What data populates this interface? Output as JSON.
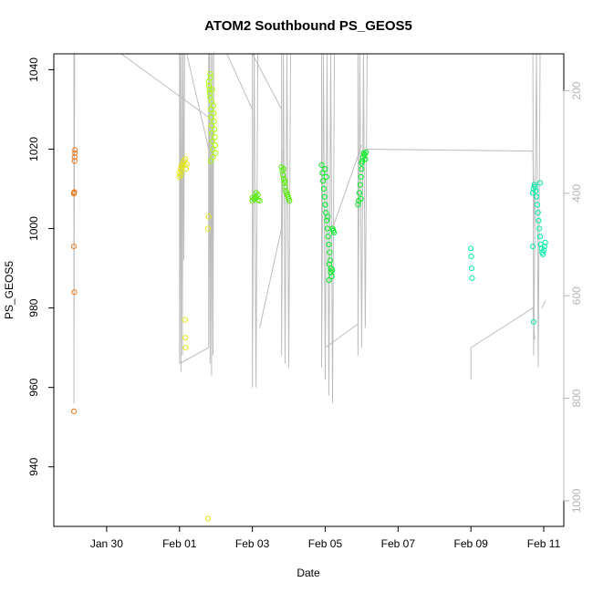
{
  "chart_data": {
    "type": "scatter",
    "title": "ATOM2 Southbound PS_GEOS5",
    "xlabel": "Date",
    "ylabel": "PS_GEOS5",
    "x_unit": "days",
    "x_ticks": [
      {
        "value": 0,
        "label": "Jan 30"
      },
      {
        "value": 2,
        "label": "Feb 01"
      },
      {
        "value": 4,
        "label": "Feb 03"
      },
      {
        "value": 6,
        "label": "Feb 05"
      },
      {
        "value": 8,
        "label": "Feb 07"
      },
      {
        "value": 10,
        "label": "Feb 09"
      },
      {
        "value": 12,
        "label": "Feb 11"
      }
    ],
    "xlim": [
      -1.45,
      12.55
    ],
    "ylim": [
      925,
      1044
    ],
    "y_ticks": [
      940,
      960,
      980,
      1000,
      1020,
      1040
    ],
    "y2_ticks": [
      200,
      400,
      600,
      800,
      1000
    ],
    "y2lim": [
      1050,
      128
    ],
    "colors": {
      "orange": "#ee7d1e",
      "yellow": "#e6e619",
      "lime": "#aaff00",
      "green": "#55ee00",
      "bright_green": "#00ee22",
      "aqua": "#00eeaa",
      "track": "#bdbdbd",
      "axis": "#000000",
      "right_axis": "#b4b4b4"
    },
    "series": [
      {
        "color": "orange",
        "x": 0.0,
        "points": [
          [
            -0.9,
            1009
          ],
          [
            -0.9,
            1008.8
          ],
          [
            -0.89,
            1009.2
          ],
          [
            -0.9,
            995.5
          ],
          [
            -0.89,
            984
          ],
          [
            -0.88,
            1017
          ],
          [
            -0.88,
            1018
          ],
          [
            -0.87,
            1019
          ],
          [
            -0.87,
            1019.8
          ],
          [
            -0.9,
            954
          ]
        ]
      },
      {
        "color": "yellow",
        "points": [
          [
            2.0,
            1013
          ],
          [
            2.0,
            1014
          ],
          [
            2.02,
            1015
          ],
          [
            2.03,
            1013.5
          ],
          [
            2.05,
            1016
          ],
          [
            2.06,
            1014.5
          ],
          [
            2.08,
            1015.5
          ],
          [
            2.1,
            1016.5
          ],
          [
            2.12,
            1017
          ],
          [
            2.14,
            1016
          ],
          [
            2.16,
            1017.5
          ],
          [
            2.18,
            1015
          ],
          [
            2.2,
            1016.2
          ],
          [
            2.15,
            977
          ],
          [
            2.16,
            972.5
          ],
          [
            2.17,
            970
          ],
          [
            2.78,
            927
          ],
          [
            2.8,
            1003
          ],
          [
            2.78,
            1000
          ]
        ]
      },
      {
        "color": "lime",
        "points": [
          [
            2.8,
            1037
          ],
          [
            2.81,
            1036
          ],
          [
            2.82,
            1035
          ],
          [
            2.83,
            1034
          ],
          [
            2.84,
            1033
          ],
          [
            2.85,
            1038
          ],
          [
            2.86,
            1030
          ],
          [
            2.87,
            1028
          ],
          [
            2.88,
            1026
          ],
          [
            2.89,
            1024
          ],
          [
            2.9,
            1022
          ],
          [
            2.91,
            1020
          ],
          [
            2.92,
            1018
          ],
          [
            2.93,
            1031
          ],
          [
            2.94,
            1029
          ],
          [
            2.95,
            1027
          ],
          [
            2.96,
            1025
          ],
          [
            2.97,
            1023
          ],
          [
            2.98,
            1021
          ],
          [
            2.99,
            1019
          ],
          [
            2.9,
            1035
          ],
          [
            2.88,
            1032
          ],
          [
            2.86,
            1017
          ],
          [
            2.84,
            1039
          ]
        ]
      },
      {
        "color": "green",
        "points": [
          [
            4.0,
            1007
          ],
          [
            4.05,
            1007.5
          ],
          [
            4.1,
            1008
          ],
          [
            4.15,
            1008.5
          ],
          [
            4.2,
            1007
          ],
          [
            4.1,
            1009
          ],
          [
            4.15,
            1007.2
          ],
          [
            4.0,
            1007.8
          ],
          [
            4.8,
            1015.5
          ],
          [
            4.82,
            1014.5
          ],
          [
            4.84,
            1013.5
          ],
          [
            4.86,
            1012.5
          ],
          [
            4.88,
            1011.5
          ],
          [
            4.9,
            1010.5
          ],
          [
            4.92,
            1009.5
          ],
          [
            4.94,
            1009
          ],
          [
            4.96,
            1008.5
          ],
          [
            4.98,
            1008
          ],
          [
            5.0,
            1007.5
          ],
          [
            5.02,
            1007
          ],
          [
            4.85,
            1015
          ],
          [
            4.9,
            1012
          ]
        ]
      },
      {
        "color": "bright_green",
        "points": [
          [
            5.9,
            1016
          ],
          [
            5.92,
            1014
          ],
          [
            5.94,
            1012
          ],
          [
            5.96,
            1010
          ],
          [
            5.98,
            1008
          ],
          [
            6.0,
            1006
          ],
          [
            6.02,
            1004
          ],
          [
            6.04,
            1002
          ],
          [
            6.06,
            1000
          ],
          [
            6.08,
            998
          ],
          [
            6.1,
            996
          ],
          [
            6.12,
            994
          ],
          [
            6.14,
            992
          ],
          [
            6.16,
            990
          ],
          [
            6.18,
            988
          ],
          [
            6.1,
            987
          ],
          [
            6.2,
            1000
          ],
          [
            6.22,
            999.5
          ],
          [
            6.24,
            999
          ],
          [
            6.0,
            1015
          ],
          [
            6.03,
            1013
          ],
          [
            6.07,
            1003
          ],
          [
            6.11,
            991
          ],
          [
            6.15,
            989
          ],
          [
            6.19,
            989.5
          ],
          [
            6.9,
            1006
          ],
          [
            6.92,
            1007
          ],
          [
            6.94,
            1009
          ],
          [
            6.96,
            1011
          ],
          [
            6.98,
            1013
          ],
          [
            7.0,
            1015
          ],
          [
            7.02,
            1017
          ],
          [
            7.04,
            1018
          ],
          [
            7.06,
            1019
          ],
          [
            7.08,
            1018.5
          ],
          [
            7.1,
            1017.5
          ],
          [
            7.12,
            1019.2
          ],
          [
            7.0,
            1016.5
          ],
          [
            6.98,
            1007.5
          ]
        ]
      },
      {
        "color": "aqua",
        "points": [
          [
            10.0,
            995
          ],
          [
            10.01,
            993
          ],
          [
            10.02,
            990
          ],
          [
            10.03,
            987.5
          ],
          [
            11.7,
            1009
          ],
          [
            11.72,
            1010
          ],
          [
            11.74,
            1011
          ],
          [
            11.76,
            1010.5
          ],
          [
            11.78,
            1009.5
          ],
          [
            11.8,
            1008
          ],
          [
            11.82,
            1006
          ],
          [
            11.84,
            1004
          ],
          [
            11.86,
            1002
          ],
          [
            11.88,
            1000
          ],
          [
            11.9,
            998
          ],
          [
            11.92,
            996
          ],
          [
            11.94,
            995
          ],
          [
            11.96,
            994
          ],
          [
            11.98,
            993.5
          ],
          [
            12.0,
            994.5
          ],
          [
            12.02,
            995.5
          ],
          [
            12.04,
            996.5
          ],
          [
            11.7,
            995.5
          ],
          [
            11.72,
            976.5
          ],
          [
            11.9,
            1011.5
          ]
        ]
      }
    ]
  }
}
